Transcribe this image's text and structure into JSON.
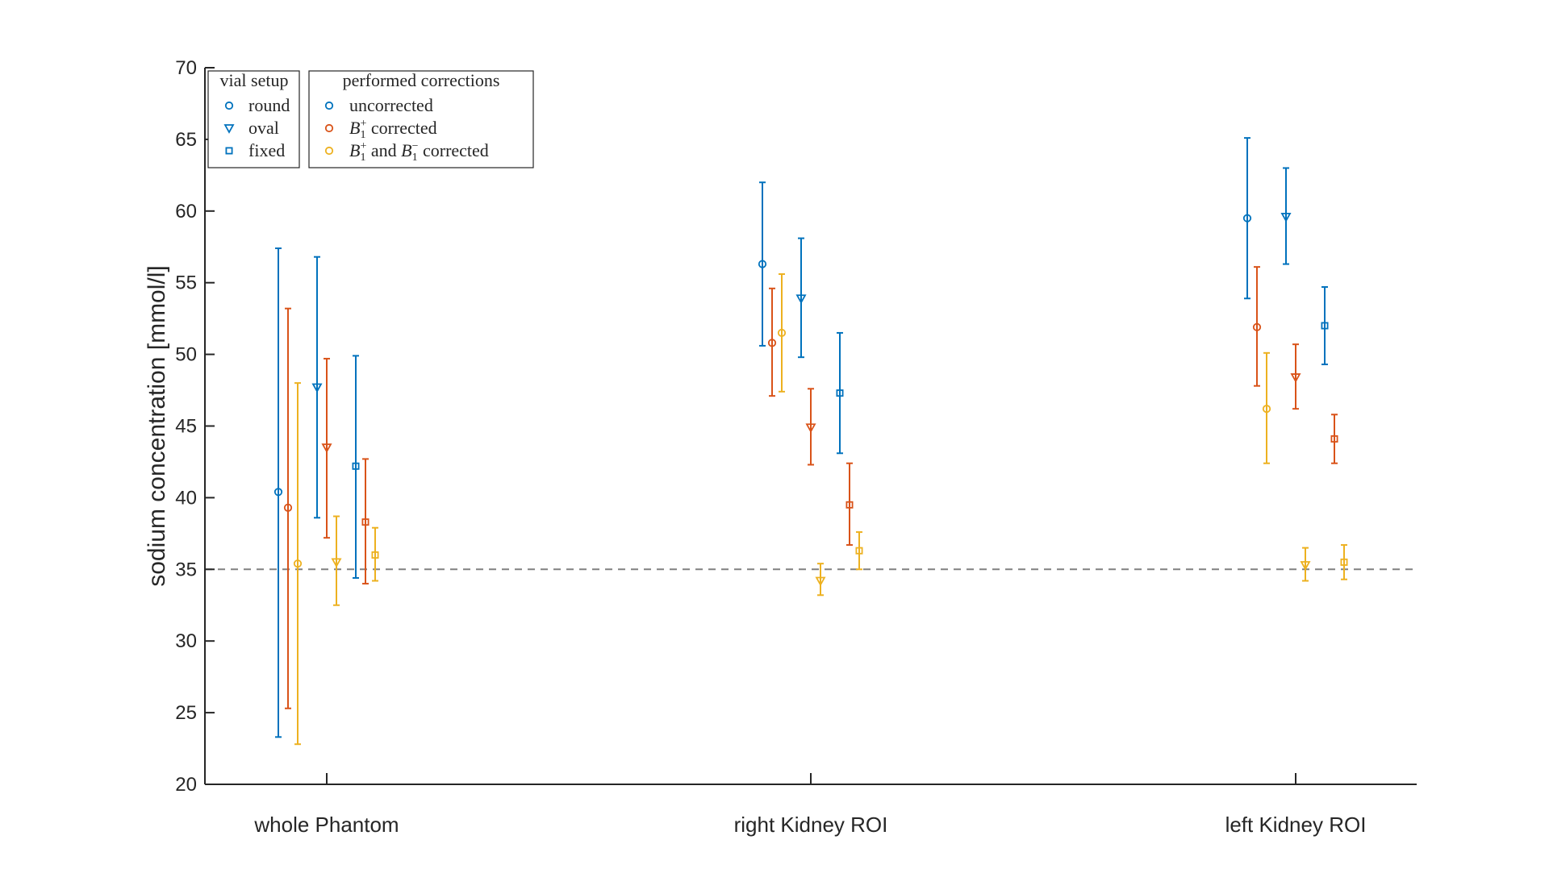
{
  "chart_data": {
    "type": "errorbar-scatter",
    "title": "",
    "xlabel": "",
    "ylabel": "sodium concentration [mmol/l]",
    "ylim": [
      20,
      70
    ],
    "yticks": [
      "20",
      "25",
      "30",
      "35",
      "40",
      "45",
      "50",
      "55",
      "60",
      "65",
      "70"
    ],
    "categories": [
      "whole Phantom",
      "right Kidney ROI",
      "left Kidney ROI"
    ],
    "reference_line": {
      "y": 35,
      "style": "dashed",
      "color": "#808080"
    },
    "colors": {
      "uncorrected": "#0072BD",
      "b1plus": "#D95319",
      "b1plusminus": "#EDB120"
    },
    "series": [
      {
        "name": "round / uncorrected",
        "setup": "round",
        "correction": "uncorrected",
        "marker": "circle",
        "values": [
          40.4,
          56.3,
          59.5
        ],
        "lower": [
          23.3,
          50.6,
          53.9
        ],
        "upper": [
          57.4,
          62.0,
          65.1
        ]
      },
      {
        "name": "round / B1+ corrected",
        "setup": "round",
        "correction": "b1plus",
        "marker": "circle",
        "values": [
          39.3,
          50.8,
          51.9
        ],
        "lower": [
          25.3,
          47.1,
          47.8
        ],
        "upper": [
          53.2,
          54.6,
          56.1
        ]
      },
      {
        "name": "round / B1+ and B1- corrected",
        "setup": "round",
        "correction": "b1plusminus",
        "marker": "circle",
        "values": [
          35.4,
          51.5,
          46.2
        ],
        "lower": [
          22.8,
          47.4,
          42.4
        ],
        "upper": [
          48.0,
          55.6,
          50.1
        ]
      },
      {
        "name": "oval / uncorrected",
        "setup": "oval",
        "correction": "uncorrected",
        "marker": "triangle",
        "values": [
          47.7,
          53.9,
          59.6
        ],
        "lower": [
          38.6,
          49.8,
          56.3
        ],
        "upper": [
          56.8,
          58.1,
          63.0
        ]
      },
      {
        "name": "oval / B1+ corrected",
        "setup": "oval",
        "correction": "b1plus",
        "marker": "triangle",
        "values": [
          43.5,
          44.9,
          48.4
        ],
        "lower": [
          37.2,
          42.3,
          46.2
        ],
        "upper": [
          49.7,
          47.6,
          50.7
        ]
      },
      {
        "name": "oval / B1+ and B1- corrected",
        "setup": "oval",
        "correction": "b1plusminus",
        "marker": "triangle",
        "values": [
          35.5,
          34.2,
          35.3
        ],
        "lower": [
          32.5,
          33.2,
          34.2
        ],
        "upper": [
          38.7,
          35.4,
          36.5
        ]
      },
      {
        "name": "fixed / uncorrected",
        "setup": "fixed",
        "correction": "uncorrected",
        "marker": "square",
        "values": [
          42.2,
          47.3,
          52.0
        ],
        "lower": [
          34.4,
          43.1,
          49.3
        ],
        "upper": [
          49.9,
          51.5,
          54.7
        ]
      },
      {
        "name": "fixed / B1+ corrected",
        "setup": "fixed",
        "correction": "b1plus",
        "marker": "square",
        "values": [
          38.3,
          39.5,
          44.1
        ],
        "lower": [
          34.0,
          36.7,
          42.4
        ],
        "upper": [
          42.7,
          42.4,
          45.8
        ]
      },
      {
        "name": "fixed / B1+ and B1- corrected",
        "setup": "fixed",
        "correction": "b1plusminus",
        "marker": "square",
        "values": [
          36.0,
          36.3,
          35.5
        ],
        "lower": [
          34.2,
          35.0,
          34.3
        ],
        "upper": [
          37.9,
          37.6,
          36.7
        ]
      }
    ],
    "legend_setup": {
      "title": "vial setup",
      "entries": [
        {
          "label": "round",
          "marker": "circle"
        },
        {
          "label": "oval",
          "marker": "triangle"
        },
        {
          "label": "fixed",
          "marker": "square"
        }
      ]
    },
    "legend_corrections": {
      "title": "performed corrections",
      "entries": [
        {
          "key": "uncorrected",
          "label": "uncorrected"
        },
        {
          "key": "b1plus",
          "label": "B1+ corrected",
          "b": "B",
          "sub": "1",
          "sup": "+",
          "tail": " corrected"
        },
        {
          "key": "b1plusminus",
          "label": "B1+ and B1- corrected",
          "b": "B",
          "sub": "1",
          "sup": "+",
          "mid": " and ",
          "b2": "B",
          "sub2": "1",
          "sup2": "−",
          "tail": " corrected"
        }
      ]
    }
  }
}
